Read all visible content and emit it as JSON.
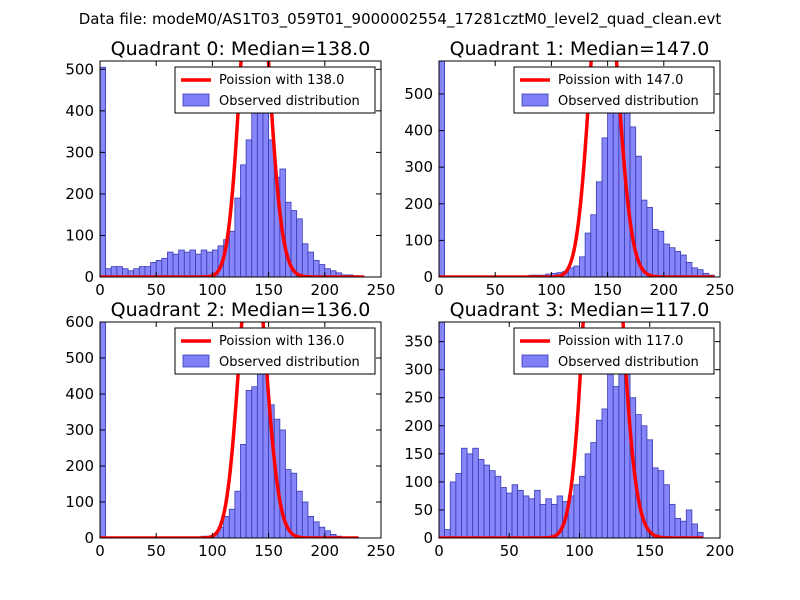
{
  "figure": {
    "suptitle": "Data file: modeM0/AS1T03_059T01_9000002554_17281cztM0_level2_quad_clean.evt"
  },
  "colors": {
    "hist_fill": "#7f7ff8",
    "hist_edge": "#3a3ab6",
    "line": "#ff0000",
    "axes": "#000000"
  },
  "chart_data": [
    {
      "type": "bar",
      "title": "Quadrant 0: Median=138.0",
      "legend": {
        "line_label": "Poission with 138.0",
        "hist_label": "Observed distribution",
        "placement": "top-right"
      },
      "xlim": [
        0,
        250
      ],
      "ylim": [
        0,
        520
      ],
      "xticks": [
        0,
        50,
        100,
        150,
        200,
        250
      ],
      "yticks": [
        0,
        100,
        200,
        300,
        400,
        500
      ],
      "bin_width": 5,
      "bins": [
        0,
        5,
        10,
        15,
        20,
        25,
        30,
        35,
        40,
        45,
        50,
        55,
        60,
        65,
        70,
        75,
        80,
        85,
        90,
        95,
        100,
        105,
        110,
        115,
        120,
        125,
        130,
        135,
        140,
        145,
        150,
        155,
        160,
        165,
        170,
        175,
        180,
        185,
        190,
        195,
        200,
        205,
        210,
        215,
        220,
        225,
        230
      ],
      "counts": [
        505,
        20,
        25,
        25,
        20,
        15,
        20,
        25,
        25,
        35,
        40,
        45,
        60,
        55,
        65,
        60,
        65,
        55,
        65,
        60,
        65,
        75,
        90,
        110,
        190,
        270,
        330,
        410,
        450,
        400,
        330,
        240,
        260,
        180,
        160,
        140,
        80,
        60,
        40,
        30,
        20,
        15,
        10,
        5,
        5,
        3,
        2
      ],
      "poisson_mean": 138
    },
    {
      "type": "bar",
      "title": "Quadrant 1: Median=147.0",
      "legend": {
        "line_label": "Poission with 147.0",
        "hist_label": "Observed distribution",
        "placement": "top-right"
      },
      "xlim": [
        0,
        250
      ],
      "ylim": [
        0,
        590
      ],
      "xticks": [
        0,
        50,
        100,
        150,
        200,
        250
      ],
      "yticks": [
        0,
        100,
        200,
        300,
        400,
        500
      ],
      "bin_width": 5,
      "bins": [
        0,
        5,
        10,
        15,
        20,
        25,
        30,
        35,
        40,
        45,
        50,
        55,
        60,
        65,
        70,
        75,
        80,
        85,
        90,
        95,
        100,
        105,
        110,
        115,
        120,
        125,
        130,
        135,
        140,
        145,
        150,
        155,
        160,
        165,
        170,
        175,
        180,
        185,
        190,
        195,
        200,
        205,
        210,
        215,
        220,
        225,
        230,
        235,
        240
      ],
      "counts": [
        590,
        1,
        1,
        1,
        1,
        1,
        1,
        1,
        1,
        1,
        2,
        2,
        3,
        3,
        3,
        3,
        5,
        5,
        5,
        8,
        10,
        12,
        15,
        25,
        30,
        55,
        120,
        170,
        260,
        380,
        470,
        560,
        520,
        470,
        410,
        330,
        210,
        190,
        130,
        125,
        90,
        80,
        70,
        60,
        40,
        25,
        20,
        10,
        5
      ],
      "poisson_mean": 147
    },
    {
      "type": "bar",
      "title": "Quadrant 2: Median=136.0",
      "legend": {
        "line_label": "Poission with 136.0",
        "hist_label": "Observed distribution",
        "placement": "top-right"
      },
      "xlim": [
        0,
        250
      ],
      "ylim": [
        0,
        600
      ],
      "xticks": [
        0,
        50,
        100,
        150,
        200,
        250
      ],
      "yticks": [
        0,
        100,
        200,
        300,
        400,
        500,
        600
      ],
      "bin_width": 5,
      "bins": [
        0,
        5,
        10,
        15,
        20,
        25,
        30,
        35,
        40,
        45,
        50,
        55,
        60,
        65,
        70,
        75,
        80,
        85,
        90,
        95,
        100,
        105,
        110,
        115,
        120,
        125,
        130,
        135,
        140,
        145,
        150,
        155,
        160,
        165,
        170,
        175,
        180,
        185,
        190,
        195,
        200,
        205,
        210,
        215,
        220,
        225
      ],
      "counts": [
        600,
        1,
        1,
        1,
        1,
        1,
        1,
        1,
        1,
        1,
        1,
        1,
        1,
        1,
        2,
        3,
        3,
        3,
        5,
        5,
        10,
        30,
        60,
        80,
        130,
        260,
        410,
        420,
        560,
        500,
        370,
        330,
        300,
        190,
        180,
        130,
        100,
        60,
        45,
        30,
        20,
        10,
        5,
        3,
        2,
        1
      ],
      "poisson_mean": 136
    },
    {
      "type": "bar",
      "title": "Quadrant 3: Median=117.0",
      "legend": {
        "line_label": "Poission with 117.0",
        "hist_label": "Observed distribution",
        "placement": "top-right"
      },
      "xlim": [
        0,
        200
      ],
      "ylim": [
        0,
        385
      ],
      "xticks": [
        0,
        50,
        100,
        150,
        200
      ],
      "yticks": [
        0,
        50,
        100,
        150,
        200,
        250,
        300,
        350
      ],
      "bin_width": 4,
      "bins": [
        0,
        4,
        8,
        12,
        16,
        20,
        24,
        28,
        32,
        36,
        40,
        44,
        48,
        52,
        56,
        60,
        64,
        68,
        72,
        76,
        80,
        84,
        88,
        92,
        96,
        100,
        104,
        108,
        112,
        116,
        120,
        124,
        128,
        132,
        136,
        140,
        144,
        148,
        152,
        156,
        160,
        164,
        168,
        172,
        176,
        180,
        184
      ],
      "counts": [
        385,
        15,
        100,
        115,
        160,
        150,
        160,
        140,
        130,
        120,
        110,
        90,
        80,
        95,
        85,
        75,
        70,
        85,
        60,
        70,
        60,
        75,
        65,
        75,
        95,
        110,
        150,
        170,
        210,
        230,
        300,
        270,
        340,
        330,
        250,
        220,
        200,
        175,
        125,
        120,
        95,
        60,
        35,
        30,
        50,
        25,
        10
      ],
      "poisson_mean": 117
    }
  ]
}
